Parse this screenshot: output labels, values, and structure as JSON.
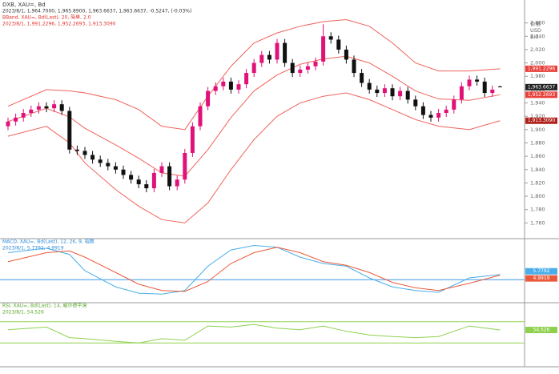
{
  "chart_data": [
    {
      "type": "candlestick",
      "title": "DXB, XAU=, Bd",
      "subtitle": "2023/8/1, 1,964.7000, 1,965.8900, 1,963.6637, 1,963.6637, -0.5247, (-0.03%)",
      "y_label_lines": [
        "价格",
        "USD",
        "Bid"
      ],
      "up_color": "#e0127a",
      "down_color": "#111111",
      "open": [
        1905,
        1912,
        1918,
        1925,
        1930,
        1935,
        1932,
        1938,
        1928,
        1870,
        1868,
        1862,
        1855,
        1850,
        1845,
        1840,
        1832,
        1825,
        1818,
        1812,
        1835,
        1845,
        1815,
        1825,
        1865,
        1905,
        1935,
        1958,
        1965,
        1972,
        1960,
        1968,
        1985,
        2000,
        2012,
        2005,
        2030,
        2000,
        1985,
        1990,
        1995,
        2002,
        2040,
        2035,
        2020,
        2005,
        1985,
        1970,
        1960,
        1955,
        1962,
        1950,
        1958,
        1945,
        1935,
        1922,
        1918,
        1925,
        1930,
        1945,
        1965,
        1975,
        1972,
        1955,
        1964.7
      ],
      "high": [
        1918,
        1924,
        1931,
        1936,
        1941,
        1941,
        1944,
        1944,
        1934,
        1876,
        1874,
        1868,
        1861,
        1856,
        1851,
        1846,
        1838,
        1831,
        1824,
        1841,
        1851,
        1851,
        1831,
        1871,
        1911,
        1941,
        1964,
        1971,
        1978,
        1978,
        1974,
        1991,
        2006,
        2018,
        2018,
        2036,
        2036,
        2006,
        1996,
        2001,
        2008,
        2058,
        2046,
        2041,
        2026,
        2011,
        1991,
        1976,
        1966,
        1968,
        1968,
        1964,
        1964,
        1951,
        1941,
        1928,
        1931,
        1936,
        1951,
        1971,
        1981,
        1981,
        1978,
        1966,
        1965.89
      ],
      "low": [
        1899,
        1906,
        1912,
        1919,
        1924,
        1926,
        1926,
        1922,
        1864,
        1862,
        1856,
        1849,
        1844,
        1839,
        1834,
        1826,
        1819,
        1812,
        1806,
        1806,
        1829,
        1809,
        1809,
        1819,
        1859,
        1899,
        1929,
        1952,
        1959,
        1954,
        1954,
        1962,
        1979,
        1994,
        1999,
        1999,
        1994,
        1979,
        1979,
        1984,
        1989,
        1996,
        2029,
        2014,
        1999,
        1979,
        1964,
        1954,
        1949,
        1949,
        1944,
        1944,
        1939,
        1929,
        1916,
        1912,
        1912,
        1919,
        1924,
        1939,
        1959,
        1966,
        1949,
        1949,
        1963.6637
      ],
      "close": [
        1912,
        1918,
        1925,
        1930,
        1935,
        1932,
        1938,
        1928,
        1870,
        1868,
        1862,
        1855,
        1850,
        1845,
        1840,
        1832,
        1825,
        1818,
        1812,
        1835,
        1845,
        1815,
        1825,
        1865,
        1905,
        1935,
        1958,
        1965,
        1972,
        1960,
        1968,
        1985,
        2000,
        2012,
        2005,
        2030,
        2000,
        1985,
        1990,
        1995,
        2002,
        2040,
        2035,
        2020,
        2005,
        1985,
        1970,
        1960,
        1955,
        1962,
        1950,
        1958,
        1945,
        1935,
        1922,
        1918,
        1925,
        1930,
        1945,
        1965,
        1975,
        1972,
        1955,
        1960,
        1963.6637
      ],
      "close_value_labels": [
        null,
        null,
        null,
        null,
        null,
        null,
        null,
        null,
        null,
        null,
        null,
        null,
        null,
        null,
        null,
        null,
        null,
        null,
        null,
        null,
        null,
        null,
        null,
        null,
        null,
        null,
        null,
        null,
        null,
        null,
        null,
        null,
        null,
        null,
        null,
        null,
        null,
        null,
        null,
        null,
        null,
        null,
        null,
        null,
        null,
        null,
        null,
        null,
        null,
        null,
        null,
        null,
        null,
        null,
        null,
        null,
        null,
        null,
        null,
        null,
        null,
        null,
        null,
        null,
        "1,963.6637"
      ],
      "ylim": [
        1740,
        2080
      ],
      "yticks": [
        {
          "value": 1760,
          "label": "1,760"
        },
        {
          "value": 1780,
          "label": "1,780"
        },
        {
          "value": 1800,
          "label": "1,800"
        },
        {
          "value": 1820,
          "label": "1,820"
        },
        {
          "value": 1840,
          "label": "1,840"
        },
        {
          "value": 1860,
          "label": "1,860"
        },
        {
          "value": 1880,
          "label": "1,880"
        },
        {
          "value": 1900,
          "label": "1,900"
        },
        {
          "value": 1920,
          "label": "1,920"
        },
        {
          "value": 1940,
          "label": "1,940"
        },
        {
          "value": 1960,
          "label": "1,960"
        },
        {
          "value": 1980,
          "label": "1,980"
        },
        {
          "value": 2000,
          "label": "2,000"
        },
        {
          "value": 2020,
          "label": "2,020"
        },
        {
          "value": 2040,
          "label": "2,040"
        },
        {
          "value": 2060,
          "label": "2,060"
        }
      ],
      "overlay": {
        "title": "BBand, XAU=, Bd(Last), 20, 简单, 2.0",
        "subtitle": "2023/8/1, 1,991.2296, 1,952.2693, 1,913.3090",
        "x": [
          0,
          5,
          8,
          10,
          14,
          17,
          20,
          23,
          26,
          29,
          32,
          35,
          38,
          41,
          44,
          47,
          50,
          53,
          56,
          60,
          64
        ],
        "series": [
          {
            "color": "#f0625a",
            "tag_color": "#e8403a",
            "values": [
              1935,
              1960,
              1958,
              1955,
              1945,
              1930,
              1905,
              1900,
              1950,
              1995,
              2030,
              2045,
              2055,
              2062,
              2065,
              2055,
              2030,
              2000,
              1988,
              1988,
              1991.2296
            ],
            "value_labels": [
              null,
              null,
              null,
              null,
              null,
              null,
              null,
              null,
              null,
              null,
              null,
              null,
              null,
              null,
              null,
              null,
              null,
              null,
              null,
              null,
              "1,991.2296"
            ]
          },
          {
            "color": "#f0625a",
            "tag_color": "#e8403a",
            "values": [
              1912,
              1932,
              1919,
              1902,
              1877,
              1857,
              1835,
              1830,
              1870,
              1918,
              1958,
              1982,
              1998,
              2006,
              2010,
              2000,
              1980,
              1958,
              1946,
              1944,
              1952.2693
            ],
            "value_labels": [
              null,
              null,
              null,
              null,
              null,
              null,
              null,
              null,
              null,
              null,
              null,
              null,
              null,
              null,
              null,
              null,
              null,
              null,
              null,
              null,
              "1,952.2693"
            ]
          },
          {
            "color": "#f0625a",
            "tag_color": "#b0201a",
            "values": [
              1890,
              1905,
              1880,
              1850,
              1810,
              1785,
              1765,
              1760,
              1790,
              1840,
              1885,
              1920,
              1940,
              1950,
              1955,
              1945,
              1930,
              1915,
              1905,
              1900,
              1913.309
            ],
            "value_labels": [
              null,
              null,
              null,
              null,
              null,
              null,
              null,
              null,
              null,
              null,
              null,
              null,
              null,
              null,
              null,
              null,
              null,
              null,
              null,
              null,
              "1,913.3090"
            ]
          }
        ]
      }
    },
    {
      "type": "line",
      "title": "MACD, XAU=, Bd(Last), 12, 26, 9, 指数",
      "subtitle": "2023/8/1, 5.7792, 4.9919",
      "title_color": "#2a8ad8",
      "x": [
        0,
        5,
        8,
        10,
        14,
        17,
        20,
        23,
        26,
        29,
        32,
        35,
        38,
        41,
        44,
        47,
        50,
        53,
        56,
        60,
        64
      ],
      "ylim": [
        -22,
        42
      ],
      "levels": [
        0
      ],
      "level_color": "#3a9ae8",
      "series": [
        {
          "color": "#4aaeea",
          "values": [
            30,
            35,
            28,
            10,
            -8,
            -15,
            -16,
            -12,
            15,
            33,
            38,
            36,
            25,
            18,
            15,
            2,
            -8,
            -12,
            -14,
            2,
            5.7792
          ],
          "value_labels": [
            null,
            null,
            null,
            null,
            null,
            null,
            null,
            null,
            null,
            null,
            null,
            null,
            null,
            null,
            null,
            null,
            null,
            null,
            null,
            null,
            "5.7792"
          ]
        },
        {
          "color": "#ea5a3a",
          "values": [
            20,
            30,
            32,
            25,
            8,
            -5,
            -12,
            -13,
            -2,
            18,
            30,
            36,
            30,
            20,
            16,
            8,
            -3,
            -9,
            -12,
            -4,
            4.9919
          ],
          "value_labels": [
            null,
            null,
            null,
            null,
            null,
            null,
            null,
            null,
            null,
            null,
            null,
            null,
            null,
            null,
            null,
            null,
            null,
            null,
            null,
            null,
            "4.9919"
          ]
        }
      ]
    },
    {
      "type": "line",
      "title": "RSI, XAU=, Bd(Last), 14, 威尔德平滑",
      "subtitle": "2023/8/1, 54.526",
      "title_color": "#5aa82a",
      "x": [
        0,
        5,
        8,
        10,
        14,
        17,
        20,
        23,
        26,
        29,
        32,
        35,
        38,
        41,
        44,
        47,
        50,
        53,
        56,
        60,
        64
      ],
      "ylim": [
        0,
        100
      ],
      "levels": [
        70,
        30
      ],
      "level_color": "#8fd14f",
      "series": [
        {
          "color": "#8fd14f",
          "values": [
            55,
            60,
            40,
            38,
            33,
            30,
            38,
            35,
            62,
            60,
            65,
            58,
            55,
            62,
            52,
            45,
            42,
            40,
            42,
            62,
            54.526
          ],
          "value_labels": [
            null,
            null,
            null,
            null,
            null,
            null,
            null,
            null,
            null,
            null,
            null,
            null,
            null,
            null,
            null,
            null,
            null,
            null,
            null,
            null,
            "54.526"
          ]
        }
      ]
    }
  ]
}
